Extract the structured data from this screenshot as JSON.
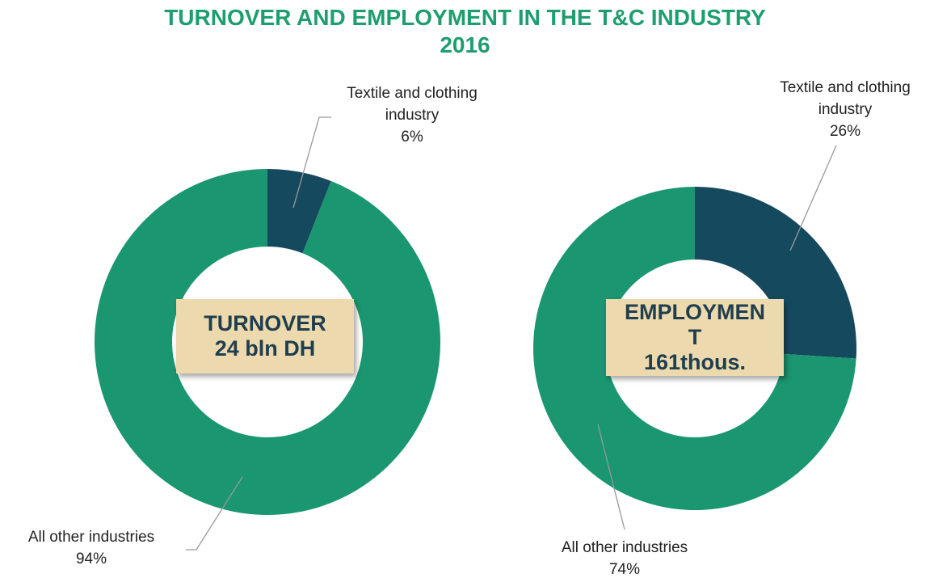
{
  "title": [
    "TURNOVER AND EMPLOYMENT IN THE T&C INDUSTRY",
    "2016"
  ],
  "chart_data": [
    {
      "type": "donut",
      "center_label": [
        "TURNOVER",
        "24 bln DH"
      ],
      "categories": [
        "Textile and clothing industry",
        "All other industries"
      ],
      "values": [
        6,
        94
      ],
      "value_labels": [
        "6%",
        "94%"
      ],
      "colors": [
        "#154a5e",
        "#1a9670"
      ]
    },
    {
      "type": "donut",
      "center_label": [
        "EMPLOYMEN",
        "T",
        "161thous."
      ],
      "categories": [
        "Textile and clothing industry",
        "All other industries"
      ],
      "values": [
        26,
        74
      ],
      "value_labels": [
        "26%",
        "74%"
      ],
      "colors": [
        "#154a5e",
        "#1a9670"
      ]
    }
  ]
}
